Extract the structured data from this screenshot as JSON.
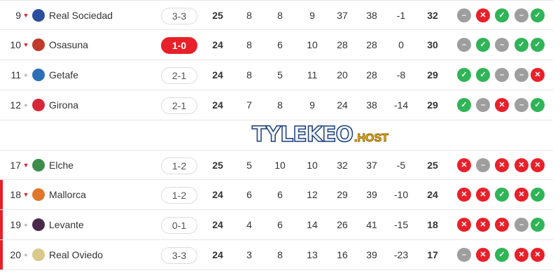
{
  "colors": {
    "win": "#2fb457",
    "loss": "#e8202a",
    "draw": "#9e9e9e",
    "relegation": "#e8202a"
  },
  "watermark": {
    "line1": "TYLEKEO",
    "line2": ".HOST"
  },
  "rows": [
    {
      "pos": "9",
      "trend": "down",
      "team": "Real Sociedad",
      "logo": "#2a4f9e",
      "score": "3-3",
      "live": false,
      "p": "25",
      "w": "8",
      "d": "8",
      "l": "9",
      "gf": "37",
      "ga": "38",
      "gd": "-1",
      "pts": "32",
      "form": [
        "D",
        "L",
        "W",
        "D",
        "W"
      ],
      "relegation": false
    },
    {
      "pos": "10",
      "trend": "down",
      "team": "Osasuna",
      "logo": "#c0392b",
      "score": "1-0",
      "live": true,
      "p": "24",
      "w": "8",
      "d": "6",
      "l": "10",
      "gf": "28",
      "ga": "28",
      "gd": "0",
      "pts": "30",
      "form": [
        "D",
        "W",
        "D",
        "W",
        "W"
      ],
      "relegation": false
    },
    {
      "pos": "11",
      "trend": "same",
      "team": "Getafe",
      "logo": "#2c6fb7",
      "score": "2-1",
      "live": false,
      "p": "24",
      "w": "8",
      "d": "5",
      "l": "11",
      "gf": "20",
      "ga": "28",
      "gd": "-8",
      "pts": "29",
      "form": [
        "W",
        "W",
        "D",
        "D",
        "L"
      ],
      "relegation": false
    },
    {
      "pos": "12",
      "trend": "same",
      "team": "Girona",
      "logo": "#d62839",
      "score": "2-1",
      "live": false,
      "p": "24",
      "w": "7",
      "d": "8",
      "l": "9",
      "gf": "24",
      "ga": "38",
      "gd": "-14",
      "pts": "29",
      "form": [
        "W",
        "D",
        "L",
        "D",
        "W"
      ],
      "relegation": false
    },
    {
      "pos": "17",
      "trend": "down",
      "team": "Elche",
      "logo": "#3a8d4a",
      "score": "1-2",
      "live": false,
      "p": "25",
      "w": "5",
      "d": "10",
      "l": "10",
      "gf": "32",
      "ga": "37",
      "gd": "-5",
      "pts": "25",
      "form": [
        "L",
        "D",
        "L",
        "L",
        "L"
      ],
      "relegation": false
    },
    {
      "pos": "18",
      "trend": "down",
      "team": "Mallorca",
      "logo": "#e0762a",
      "score": "1-2",
      "live": false,
      "p": "24",
      "w": "6",
      "d": "6",
      "l": "12",
      "gf": "29",
      "ga": "39",
      "gd": "-10",
      "pts": "24",
      "form": [
        "L",
        "L",
        "W",
        "L",
        "W"
      ],
      "relegation": true
    },
    {
      "pos": "19",
      "trend": "same",
      "team": "Levante",
      "logo": "#4a2a4a",
      "score": "0-1",
      "live": false,
      "p": "24",
      "w": "4",
      "d": "6",
      "l": "14",
      "gf": "26",
      "ga": "41",
      "gd": "-15",
      "pts": "18",
      "form": [
        "L",
        "L",
        "L",
        "D",
        "W"
      ],
      "relegation": true
    },
    {
      "pos": "20",
      "trend": "same",
      "team": "Real Oviedo",
      "logo": "#d9c98a",
      "score": "3-3",
      "live": false,
      "p": "24",
      "w": "3",
      "d": "8",
      "l": "13",
      "gf": "16",
      "ga": "39",
      "gd": "-23",
      "pts": "17",
      "form": [
        "D",
        "L",
        "W",
        "L",
        "L"
      ],
      "relegation": true
    }
  ]
}
